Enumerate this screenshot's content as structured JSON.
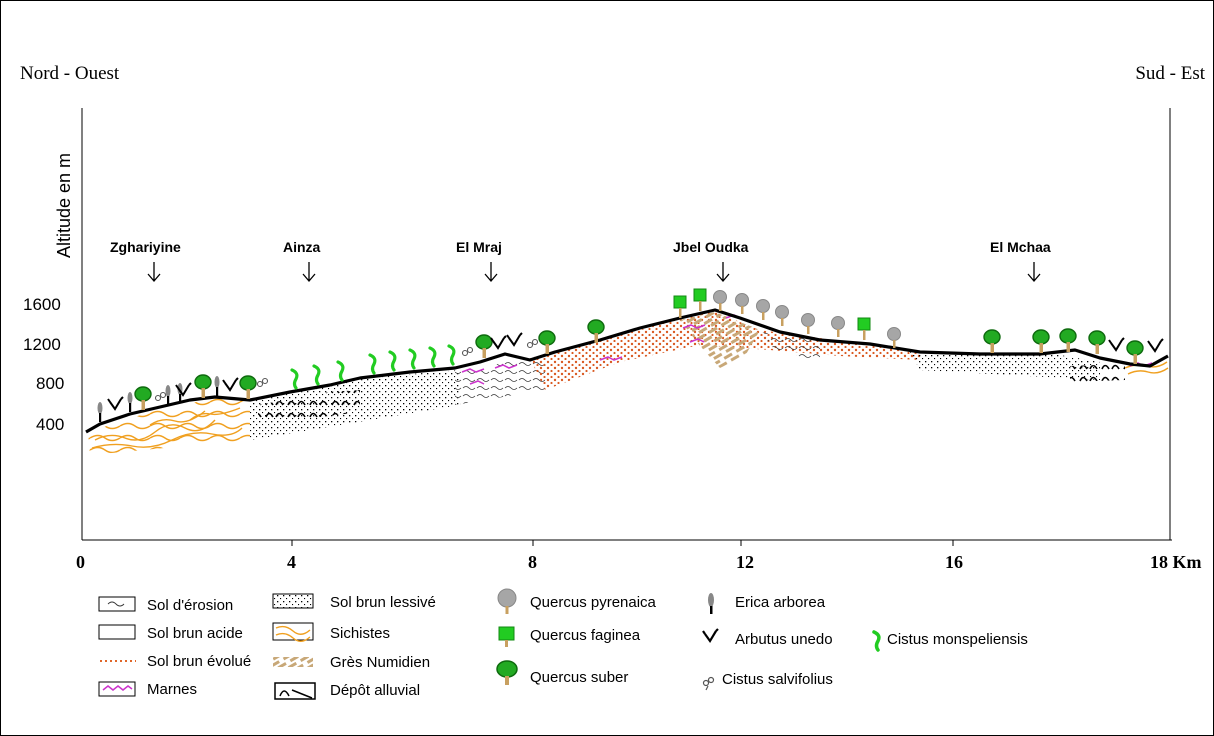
{
  "orientation": {
    "left": "Nord - Ouest",
    "right": "Sud - Est"
  },
  "y_axis": {
    "label": "Altitude en m",
    "ticks": [
      "1600",
      "1200",
      "800",
      "400"
    ]
  },
  "x_axis": {
    "ticks": [
      "0",
      "4",
      "8",
      "12",
      "16",
      "18 Km"
    ]
  },
  "localities": [
    {
      "name": "Zghariyine",
      "km": 1.3
    },
    {
      "name": "Ainza",
      "km": 4.2
    },
    {
      "name": "El Mraj",
      "km": 7.5
    },
    {
      "name": "Jbel Oudka",
      "km": 11.8
    },
    {
      "name": "El Mchaa",
      "km": 17.5
    }
  ],
  "legend": {
    "soils": [
      {
        "label": "Sol d'érosion",
        "icon": "erosion-soil-swatch"
      },
      {
        "label": "Sol brun acide",
        "icon": "acid-brown-soil-swatch"
      },
      {
        "label": "Sol brun évolué",
        "icon": "evolved-brown-soil-swatch",
        "color": "#e0672a"
      },
      {
        "label": "Marnes",
        "icon": "marl-swatch",
        "color": "#cc33cc"
      }
    ],
    "substrates": [
      {
        "label": "Sol brun lessivé",
        "icon": "leached-brown-soil-swatch"
      },
      {
        "label": "Sichistes",
        "icon": "schist-swatch",
        "color": "#f0a020"
      },
      {
        "label": "Grès Numidien",
        "icon": "numidian-sandstone-swatch",
        "color": "#c8a878"
      },
      {
        "label": "Dépôt alluvial",
        "icon": "alluvial-deposit-swatch"
      }
    ],
    "trees": [
      {
        "label": "Quercus pyrenaica",
        "icon": "quercus-pyrenaica-icon",
        "color": "#a6a6a6"
      },
      {
        "label": "Quercus faginea",
        "icon": "quercus-faginea-icon",
        "color": "#22cc22"
      },
      {
        "label": "Quercus suber",
        "icon": "quercus-suber-icon",
        "color": "#22aa22"
      }
    ],
    "shrubs": [
      {
        "label": "Erica arborea",
        "icon": "erica-arborea-icon"
      },
      {
        "label": "Arbutus unedo",
        "icon": "arbutus-unedo-icon"
      },
      {
        "label": "Cistus salvifolius",
        "icon": "cistus-salvifolius-icon"
      }
    ],
    "extra": {
      "label": "Cistus monspeliensis",
      "icon": "cistus-monspeliensis-icon",
      "color": "#22cc22"
    }
  }
}
